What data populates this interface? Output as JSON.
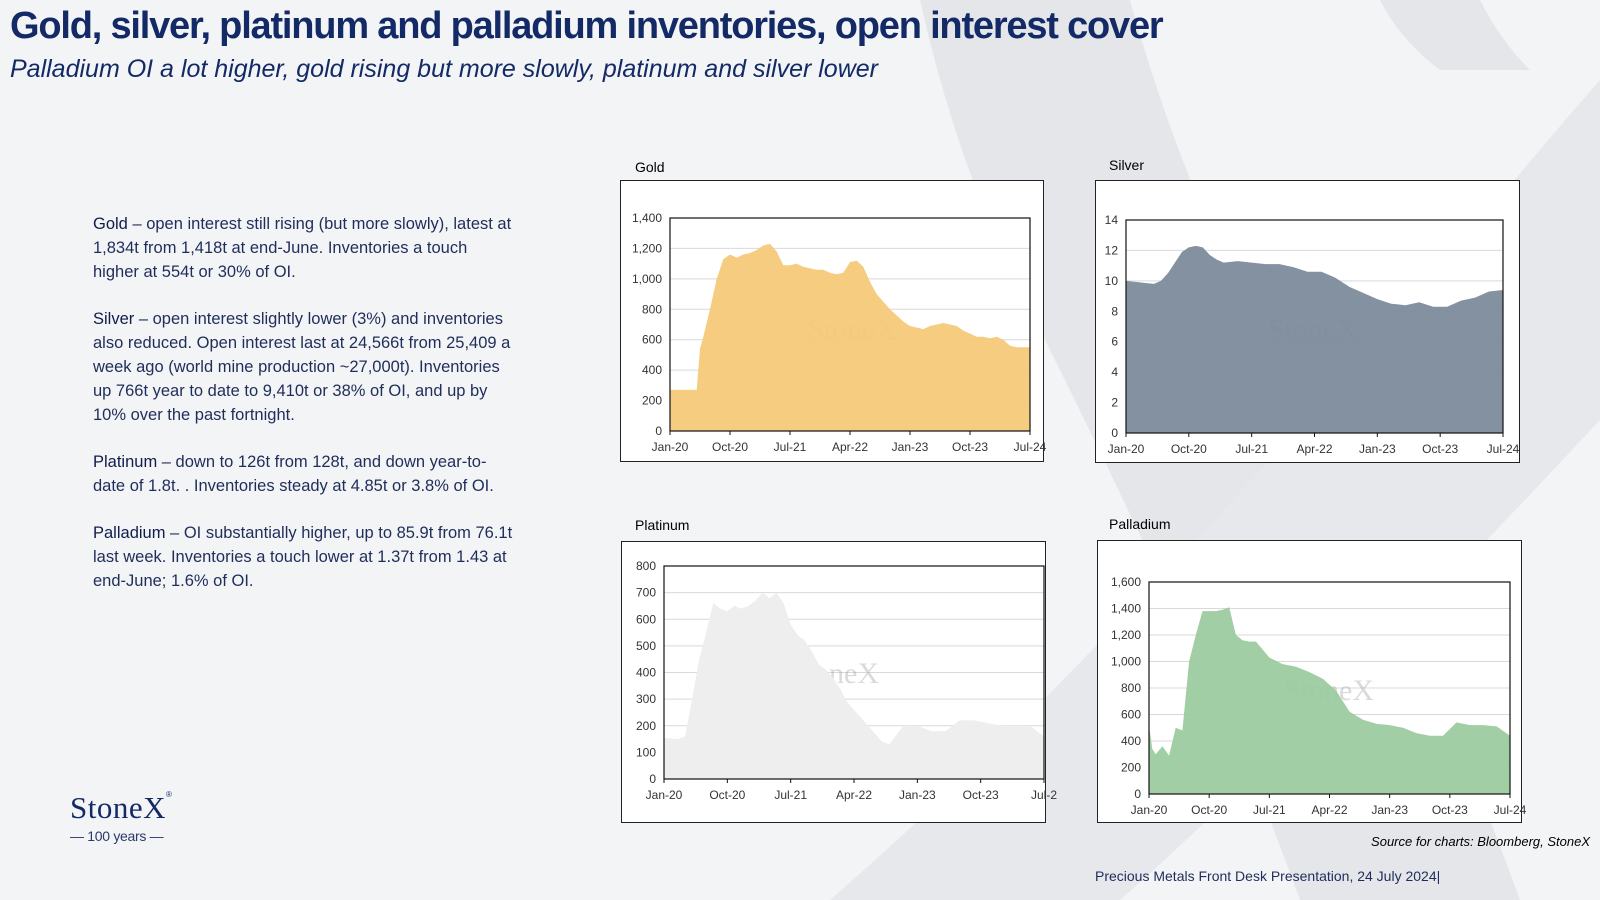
{
  "header": {
    "title": "Gold, silver, platinum and palladium inventories, open interest cover",
    "subtitle": "Palladium OI a lot higher, gold rising but more slowly, platinum and silver lower"
  },
  "commentary": [
    {
      "metal": "Gold",
      "text": " – open interest still rising (but more slowly), latest at 1,834t from 1,418t at end-June. Inventories a touch higher at 554t or 30% of OI."
    },
    {
      "metal": "Silver",
      "text": " – open interest slightly lower (3%) and inventories also reduced.  Open interest last at 24,566t from 25,409 a week ago (world mine production ~27,000t).  Inventories up 766t year to date to 9,410t or 38% of OI, and up by 10% over the past fortnight."
    },
    {
      "metal": "Platinum",
      "text": " – down to 126t from 128t, and down year-to-date of 1.8t. .  Inventories steady at 4.85t or 3.8% of OI."
    },
    {
      "metal": "Palladium",
      "text": " – OI substantially higher, up to 85.9t from 76.1t last week. Inventories a touch lower at 1.37t from 1.43 at end-June; 1.6% of OI."
    }
  ],
  "logo": {
    "name": "StoneX",
    "reg": "®",
    "tagline": "— 100 years —"
  },
  "watermark": "StoneX",
  "source": "Source for charts: Bloomberg, StoneX",
  "footer": "Precious Metals Front Desk Presentation, 24 July 2024|",
  "colors": {
    "navy": "#142a66",
    "gold": "#f5c97a",
    "silver": "#7d8b9c",
    "platinum": "#eeeeee",
    "palladium": "#9ccb9f"
  },
  "chart_data": [
    {
      "type": "area",
      "title": "Gold",
      "color": "#f5c97a",
      "xlabels": [
        "Jan-20",
        "Oct-20",
        "Jul-21",
        "Apr-22",
        "Jan-23",
        "Oct-23",
        "Jul-24"
      ],
      "ylim": [
        0,
        1400
      ],
      "yticks": [
        0,
        200,
        400,
        600,
        800,
        1000,
        1200,
        1400
      ],
      "ytick_labels": [
        "0",
        "200",
        "400",
        "600",
        "800",
        "1,000",
        "1,200",
        "1,400"
      ],
      "x": [
        0,
        1,
        2,
        3,
        4,
        4.5,
        5,
        6,
        7,
        8,
        9,
        10,
        11,
        12,
        13,
        14,
        15,
        16,
        17,
        18,
        19,
        20,
        21,
        22,
        23,
        24,
        25,
        26,
        27,
        28,
        29,
        30,
        31,
        32,
        33,
        34,
        35,
        36,
        37,
        38,
        39,
        40,
        41,
        42,
        43,
        44,
        45,
        46,
        47,
        48,
        49,
        50,
        51,
        52,
        53,
        54
      ],
      "values": [
        270,
        270,
        270,
        270,
        270,
        540,
        620,
        800,
        1000,
        1130,
        1160,
        1140,
        1160,
        1170,
        1190,
        1220,
        1230,
        1180,
        1090,
        1090,
        1100,
        1080,
        1070,
        1060,
        1060,
        1040,
        1030,
        1040,
        1110,
        1120,
        1080,
        980,
        900,
        850,
        800,
        760,
        720,
        690,
        680,
        670,
        690,
        700,
        710,
        700,
        690,
        660,
        640,
        620,
        620,
        610,
        620,
        600,
        560,
        550,
        550,
        550
      ]
    },
    {
      "type": "area",
      "title": "Silver",
      "color": "#7d8b9c",
      "xlabels": [
        "Jan-20",
        "Oct-20",
        "Jul-21",
        "Apr-22",
        "Jan-23",
        "Oct-23",
        "Jul-24"
      ],
      "ylim": [
        0,
        14
      ],
      "yticks": [
        0,
        2,
        4,
        6,
        8,
        10,
        12,
        14
      ],
      "ytick_labels": [
        "0",
        "2",
        "4",
        "6",
        "8",
        "10",
        "12",
        "14"
      ],
      "x": [
        0,
        2,
        4,
        5,
        6,
        7,
        8,
        9,
        10,
        11,
        12,
        13,
        14,
        16,
        18,
        20,
        22,
        24,
        26,
        28,
        30,
        32,
        34,
        36,
        38,
        40,
        42,
        44,
        46,
        48,
        50,
        52,
        54
      ],
      "values": [
        10.0,
        9.9,
        9.8,
        10.0,
        10.5,
        11.2,
        11.9,
        12.2,
        12.3,
        12.2,
        11.7,
        11.4,
        11.2,
        11.3,
        11.2,
        11.1,
        11.1,
        10.9,
        10.6,
        10.6,
        10.2,
        9.6,
        9.2,
        8.8,
        8.5,
        8.4,
        8.6,
        8.3,
        8.3,
        8.7,
        8.9,
        9.3,
        9.4
      ]
    },
    {
      "type": "area",
      "title": "Platinum",
      "color": "#eeeeee",
      "xlabels": [
        "Jan-20",
        "Oct-20",
        "Jul-21",
        "Apr-22",
        "Jan-23",
        "Oct-23",
        "Jul-2"
      ],
      "ylim": [
        0,
        800
      ],
      "yticks": [
        0,
        100,
        200,
        300,
        400,
        500,
        600,
        700,
        800
      ],
      "ytick_labels": [
        "0",
        "100",
        "200",
        "300",
        "400",
        "500",
        "600",
        "700",
        "800"
      ],
      "x": [
        0,
        2,
        3,
        4,
        5,
        6,
        7,
        8,
        9,
        10,
        11,
        12,
        13,
        14,
        15,
        16,
        17,
        18,
        19,
        20,
        21,
        22,
        23,
        24,
        25,
        26,
        27,
        28,
        29,
        30,
        31,
        32,
        34,
        36,
        38,
        40,
        42,
        44,
        46,
        48,
        50,
        52,
        54
      ],
      "values": [
        155,
        150,
        160,
        300,
        450,
        550,
        660,
        640,
        630,
        650,
        640,
        650,
        670,
        700,
        680,
        700,
        660,
        580,
        540,
        520,
        480,
        430,
        410,
        380,
        340,
        290,
        260,
        230,
        200,
        170,
        140,
        130,
        200,
        200,
        180,
        180,
        220,
        220,
        210,
        200,
        200,
        200,
        160
      ]
    },
    {
      "type": "area",
      "title": "Palladium",
      "color": "#9ccb9f",
      "xlabels": [
        "Jan-20",
        "Oct-20",
        "Jul-21",
        "Apr-22",
        "Jan-23",
        "Oct-23",
        "Jul-24"
      ],
      "ylim": [
        0,
        1600
      ],
      "yticks": [
        0,
        200,
        400,
        600,
        800,
        1000,
        1200,
        1400,
        1600
      ],
      "ytick_labels": [
        "0",
        "200",
        "400",
        "600",
        "800",
        "1,000",
        "1,200",
        "1,400",
        "1,600"
      ],
      "x": [
        0,
        0.5,
        1,
        2,
        3,
        4,
        5,
        6,
        7,
        8,
        9,
        10,
        11,
        12,
        13,
        14,
        15,
        16,
        18,
        20,
        22,
        24,
        26,
        28,
        30,
        32,
        34,
        36,
        38,
        40,
        42,
        44,
        46,
        48,
        50,
        52,
        54
      ],
      "values": [
        520,
        340,
        300,
        360,
        290,
        500,
        480,
        1000,
        1200,
        1380,
        1380,
        1380,
        1390,
        1410,
        1200,
        1160,
        1150,
        1150,
        1030,
        980,
        960,
        920,
        870,
        780,
        620,
        560,
        530,
        520,
        500,
        460,
        440,
        440,
        540,
        520,
        520,
        510,
        440
      ]
    }
  ]
}
